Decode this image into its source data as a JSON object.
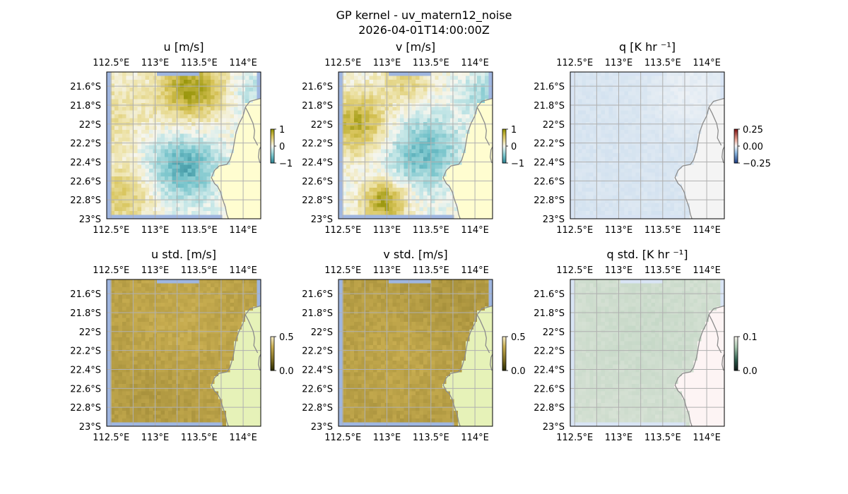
{
  "figure": {
    "title": "GP kernel - uv_matern12_noise",
    "subtitle": "2026-04-01T14:00:00Z"
  },
  "colors": {
    "ocean_blue": "#9fb6e0",
    "land": "#fffdd0",
    "land_std_uv": "#e6f2b8",
    "land_q": "#f4f4f4",
    "land_q_std": "#fdf4f4",
    "coast": "#8c8c8c",
    "grid": "#b0b0b0"
  },
  "chart_data": [
    {
      "id": "u",
      "type": "heatmap",
      "title": "u [m/s]",
      "colormap": "olive-white-teal (diverging)",
      "colorbar": {
        "min": -1,
        "max": 1,
        "ticks": [
          "1",
          "0",
          "−1"
        ]
      },
      "xticks": [
        "112.5°E",
        "113°E",
        "113.5°E",
        "114°E"
      ],
      "yticks": [
        "21.6°S",
        "21.8°S",
        "22°S",
        "22.2°S",
        "22.4°S",
        "22.6°S",
        "22.8°S",
        "23°S"
      ],
      "lon_range": [
        112.45,
        114.2
      ],
      "lat_range": [
        -23.0,
        -21.45
      ],
      "grid": true
    },
    {
      "id": "v",
      "type": "heatmap",
      "title": "v [m/s]",
      "colormap": "olive-white-teal (diverging)",
      "colorbar": {
        "min": -1,
        "max": 1,
        "ticks": [
          "1",
          "0",
          "−1"
        ]
      },
      "xticks": [
        "112.5°E",
        "113°E",
        "113.5°E",
        "114°E"
      ],
      "yticks": [
        "21.6°S",
        "21.8°S",
        "22°S",
        "22.2°S",
        "22.4°S",
        "22.6°S",
        "22.8°S",
        "23°S"
      ],
      "lon_range": [
        112.45,
        114.2
      ],
      "lat_range": [
        -23.0,
        -21.45
      ],
      "grid": true
    },
    {
      "id": "q",
      "type": "heatmap",
      "title": "q [K hr ⁻¹]",
      "colormap": "red-white-blue (diverging)",
      "colorbar": {
        "min": -0.25,
        "max": 0.25,
        "ticks": [
          "0.25",
          "0.00",
          "−0.25"
        ]
      },
      "xticks": [
        "112.5°E",
        "113°E",
        "113.5°E",
        "114°E"
      ],
      "yticks": [
        "21.6°S",
        "21.8°S",
        "22°S",
        "22.2°S",
        "22.4°S",
        "22.6°S",
        "22.8°S",
        "23°S"
      ],
      "lon_range": [
        112.45,
        114.2
      ],
      "lat_range": [
        -23.0,
        -21.45
      ],
      "grid": true
    },
    {
      "id": "ustd",
      "type": "heatmap",
      "title": "u std. [m/s]",
      "colormap": "olive (sequential)",
      "colorbar": {
        "min": 0.0,
        "max": 0.5,
        "ticks": [
          "0.5",
          "0.0"
        ]
      },
      "xticks": [
        "112.5°E",
        "113°E",
        "113.5°E",
        "114°E"
      ],
      "yticks": [
        "21.6°S",
        "21.8°S",
        "22°S",
        "22.2°S",
        "22.4°S",
        "22.6°S",
        "22.8°S",
        "23°S"
      ],
      "lon_range": [
        112.45,
        114.2
      ],
      "lat_range": [
        -23.0,
        -21.45
      ],
      "grid": true
    },
    {
      "id": "vstd",
      "type": "heatmap",
      "title": "v std. [m/s]",
      "colormap": "olive (sequential)",
      "colorbar": {
        "min": 0.0,
        "max": 0.5,
        "ticks": [
          "0.5",
          "0.0"
        ]
      },
      "xticks": [
        "112.5°E",
        "113°E",
        "113.5°E",
        "114°E"
      ],
      "yticks": [
        "21.6°S",
        "21.8°S",
        "22°S",
        "22.2°S",
        "22.4°S",
        "22.6°S",
        "22.8°S",
        "23°S"
      ],
      "lon_range": [
        112.45,
        114.2
      ],
      "lat_range": [
        -23.0,
        -21.45
      ],
      "grid": true
    },
    {
      "id": "qstd",
      "type": "heatmap",
      "title": "q std. [K hr ⁻¹]",
      "colormap": "pale grey-green (sequential)",
      "colorbar": {
        "min": 0.0,
        "max": 0.1,
        "ticks": [
          "0.1",
          "0.0"
        ]
      },
      "xticks": [
        "112.5°E",
        "113°E",
        "113.5°E",
        "114°E"
      ],
      "yticks": [
        "21.6°S",
        "21.8°S",
        "22°S",
        "22.2°S",
        "22.4°S",
        "22.6°S",
        "22.8°S",
        "23°S"
      ],
      "lon_range": [
        112.45,
        114.2
      ],
      "lat_range": [
        -23.0,
        -21.45
      ],
      "grid": true
    }
  ]
}
